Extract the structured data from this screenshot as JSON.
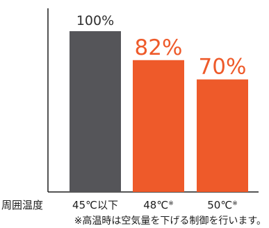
{
  "chart_data": {
    "type": "bar",
    "title": "",
    "xlabel": "周囲温度",
    "ylabel": "",
    "ylim": [
      0,
      100
    ],
    "grid": false,
    "categories": [
      {
        "base": "45℃以下",
        "mark": ""
      },
      {
        "base": "48℃",
        "mark": "※"
      },
      {
        "base": "50℃",
        "mark": "※"
      }
    ],
    "values": [
      100,
      82,
      70
    ],
    "value_labels": [
      "100%",
      "82%",
      "70%"
    ],
    "bar_colors": [
      "#555559",
      "#ee5a2a",
      "#ee5a2a"
    ],
    "value_label_colors": [
      "#2e2e2e",
      "#ee5a2a",
      "#ee5a2a"
    ],
    "footnote": "※高温時は空気量を下げる制御を行います。"
  }
}
